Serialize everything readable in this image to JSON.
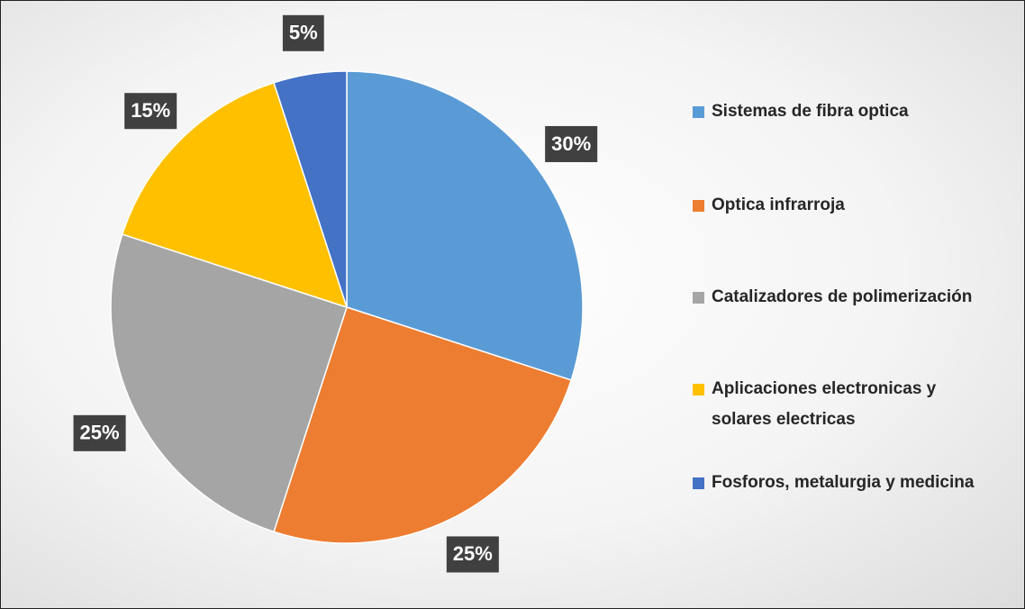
{
  "chart_data": {
    "type": "pie",
    "categories": [
      "Sistemas de fibra optica",
      "Optica infrarroja",
      "Catalizadores de polimerización",
      "Aplicaciones electronicas y solares electricas",
      "Fosforos, metalurgia y medicina"
    ],
    "values": [
      30,
      25,
      25,
      15,
      5
    ],
    "value_labels": [
      "30%",
      "25%",
      "25%",
      "15%",
      "5%"
    ],
    "colors": [
      "#5b9bd5",
      "#ed7d31",
      "#a5a5a5",
      "#ffc000",
      "#4472c4"
    ],
    "legend": "right"
  }
}
